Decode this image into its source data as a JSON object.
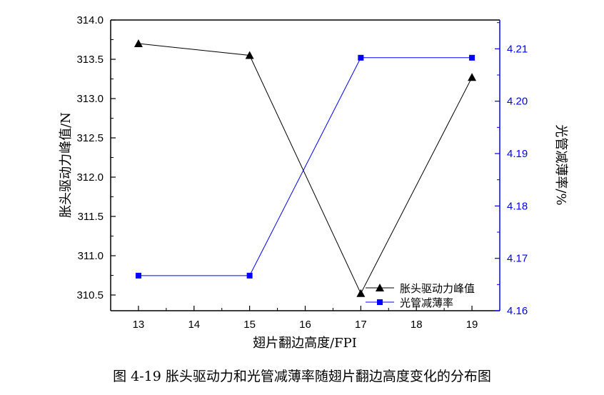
{
  "chart_data": {
    "type": "line",
    "x": [
      13,
      15,
      17,
      19
    ],
    "xlim": [
      12.5,
      19.5
    ],
    "x_ticks": [
      "13",
      "14",
      "15",
      "16",
      "17",
      "18",
      "19"
    ],
    "xlabel": "翅片翻边高度/FPI",
    "ylabel_left": "胀头驱动力峰值/N",
    "ylabel_right": "光管减薄率/%",
    "ylim_left": [
      310.3,
      314.0
    ],
    "ylim_right": [
      4.16,
      4.2155
    ],
    "yticks_left": [
      "314.0",
      "313.5",
      "313.0",
      "312.5",
      "312.0",
      "311.5",
      "311.0",
      "310.5"
    ],
    "yticks_right": [
      "4.21",
      "4.20",
      "4.19",
      "4.18",
      "4.17",
      "4.16"
    ],
    "series": [
      {
        "name": "胀头驱动力峰值",
        "axis": "left",
        "marker": "triangle",
        "color": "#000000",
        "values": [
          313.7,
          313.55,
          310.52,
          313.27
        ]
      },
      {
        "name": "光管减薄率",
        "axis": "right",
        "marker": "square",
        "color": "#0000ff",
        "values": [
          4.1667,
          4.1667,
          4.2083,
          4.2083
        ]
      }
    ],
    "legend_position": "bottom-right",
    "grid": false
  },
  "caption": "图 4-19  胀头驱动力和光管减薄率随翅片翻边高度变化的分布图"
}
